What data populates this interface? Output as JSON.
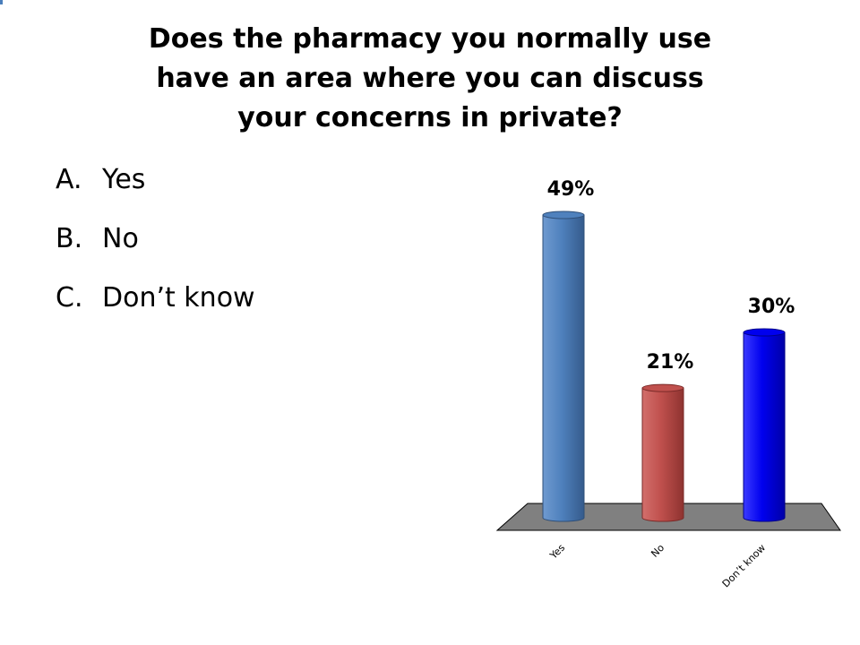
{
  "title_lines": [
    "Does the pharmacy you normally use",
    "have an area where you can discuss",
    "your concerns in private?"
  ],
  "options": [
    {
      "letter": "A.",
      "text": "Yes"
    },
    {
      "letter": "B.",
      "text": "No"
    },
    {
      "letter": "C.",
      "text": "Don’t know"
    }
  ],
  "chart_data": {
    "type": "bar",
    "categories": [
      "Yes",
      "No",
      "Don’t know"
    ],
    "values": [
      49,
      21,
      30
    ],
    "value_labels": [
      "49%",
      "21%",
      "30%"
    ],
    "ylim": [
      0,
      49
    ],
    "grid": false,
    "colors": [
      "#4f81bd",
      "#c0504d",
      "#0000ee"
    ],
    "floor_color": "#808080"
  }
}
